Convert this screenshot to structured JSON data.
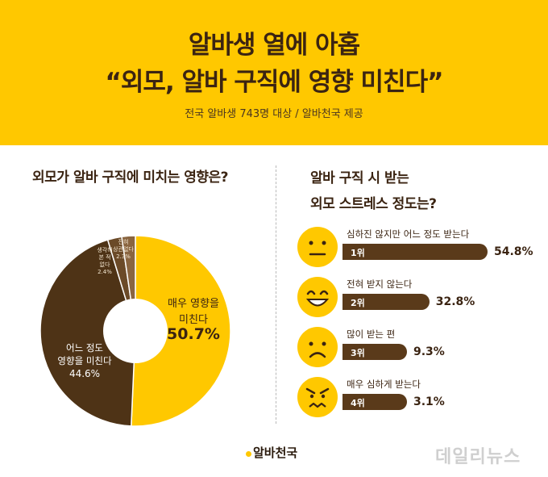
{
  "header": {
    "title_line1": "알바생 열에 아홉",
    "title_line2": "“외모, 알바 구직에 영향 미친다”",
    "subtitle": "전국 알바생 743명 대상 / 알바천국 제공"
  },
  "colors": {
    "header_bg": "#ffc800",
    "brown_dark": "#4e3316",
    "brown_mid": "#6b4a28",
    "brown_light": "#8a6540",
    "yellow": "#ffc800"
  },
  "chart_data": [
    {
      "type": "pie",
      "title": "외모가 알바 구직에 미치는 영향은?",
      "slices": [
        {
          "label": "매우 영향을 미친다",
          "value": 50.7,
          "display": "50.7%"
        },
        {
          "label": "어느 정도 영향을 미친다",
          "value": 44.6,
          "display": "44.6%"
        },
        {
          "label": "생각해 본 적 없다",
          "value": 2.4,
          "display": "2.4%"
        },
        {
          "label": "전혀 상관없다",
          "value": 2.3,
          "display": "2.3%"
        }
      ]
    },
    {
      "type": "bar",
      "title": "알바 구직 시 받는 외모 스트레스 정도는?",
      "categories": [
        "심하진 않지만 어느 정도 받는다",
        "전혀 받지 않는다",
        "많이 받는 편",
        "매우 심하게 받는다"
      ],
      "ranks": [
        "1위",
        "2위",
        "3위",
        "4위"
      ],
      "values": [
        54.8,
        32.8,
        9.3,
        3.1
      ],
      "display": [
        "54.8%",
        "32.8%",
        "9.3%",
        "3.1%"
      ],
      "faces": [
        "neutral-face-icon",
        "grinning-face-icon",
        "frowning-face-icon",
        "angry-face-icon"
      ]
    }
  ],
  "footer": {
    "logo_text": "알바천국",
    "watermark": "데일리뉴스"
  }
}
